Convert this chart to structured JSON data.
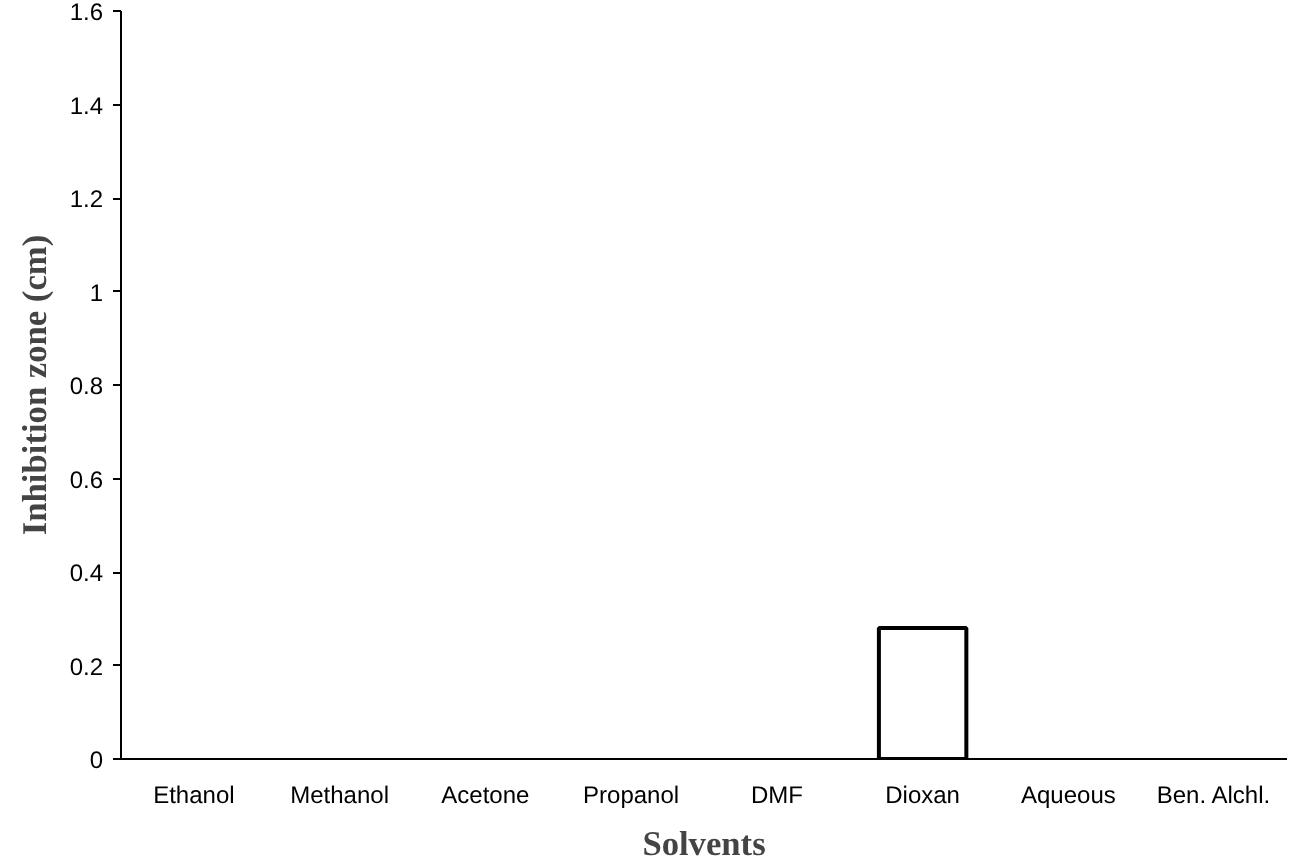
{
  "chart_data": {
    "type": "bar",
    "xlabel": "Solvents",
    "ylabel": "Inhibition zone (cm)",
    "categories": [
      "Ethanol",
      "Methanol",
      "Acetone",
      "Propanol",
      "DMF",
      "Dioxan",
      "Aqueous",
      "Ben. Alchl."
    ],
    "values": [
      0,
      0,
      0,
      0,
      0,
      0.28,
      0,
      0
    ],
    "color": "#ffffff",
    "ylim": [
      0,
      1.6
    ],
    "yticks": [
      0,
      {
        "value": 0.2,
        "label": "0.2"
      },
      {
        "value": 0.4,
        "label": "0.4"
      },
      {
        "value": 0.6,
        "label": "0.6"
      },
      {
        "value": 0.8,
        "label": "0.8"
      },
      1,
      {
        "value": 1.2,
        "label": "1.2"
      },
      {
        "value": 1.4,
        "label": "1.4"
      },
      {
        "value": 1.6,
        "label": "1.6"
      }
    ],
    "grid": false
  }
}
